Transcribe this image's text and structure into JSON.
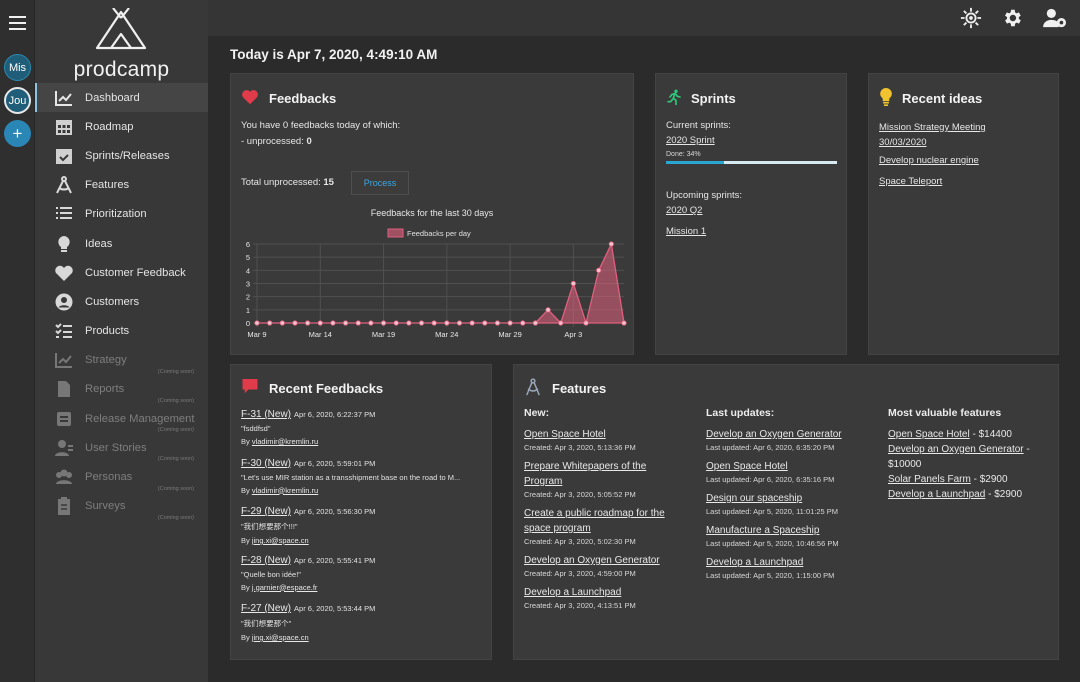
{
  "rail": {
    "workspaces": [
      {
        "label": "Mis"
      },
      {
        "label": "Jou"
      }
    ],
    "add_label": "+"
  },
  "brand": {
    "name": "prodcamp"
  },
  "nav": {
    "coming_soon": "(Coming soon)",
    "items": [
      {
        "label": "Dashboard",
        "icon": "dashboard-chart-icon"
      },
      {
        "label": "Roadmap",
        "icon": "calendar-icon"
      },
      {
        "label": "Sprints/Releases",
        "icon": "calendar-check-icon"
      },
      {
        "label": "Features",
        "icon": "compass-icon"
      },
      {
        "label": "Prioritization",
        "icon": "list-icon"
      },
      {
        "label": "Ideas",
        "icon": "lightbulb-icon"
      },
      {
        "label": "Customer Feedback",
        "icon": "heart-icon"
      },
      {
        "label": "Customers",
        "icon": "user-circle-icon"
      },
      {
        "label": "Products",
        "icon": "checklist-icon"
      },
      {
        "label": "Strategy",
        "icon": "strategy-chart-icon"
      },
      {
        "label": "Reports",
        "icon": "document-icon"
      },
      {
        "label": "Release Management",
        "icon": "release-icon"
      },
      {
        "label": "User Stories",
        "icon": "user-story-icon"
      },
      {
        "label": "Personas",
        "icon": "personas-icon"
      },
      {
        "label": "Surveys",
        "icon": "clipboard-icon"
      }
    ]
  },
  "today": "Today is Apr 7, 2020, 4:49:10 AM",
  "feedbacks": {
    "title": "Feedbacks",
    "line1": "You have 0 feedbacks today of which:",
    "unprocessed_label": "- unprocessed: ",
    "unprocessed_value": "0",
    "total_label": "Total unprocessed: ",
    "total_value": "15",
    "process_label": "Process"
  },
  "chart_data": {
    "type": "area",
    "title": "Feedbacks for the last 30 days",
    "series": [
      {
        "name": "Feedbacks per day",
        "values": [
          0,
          0,
          0,
          0,
          0,
          0,
          0,
          0,
          0,
          0,
          0,
          0,
          0,
          0,
          0,
          0,
          0,
          0,
          0,
          0,
          0,
          0,
          0,
          1,
          0,
          3,
          0,
          4,
          6,
          0
        ]
      }
    ],
    "x": [
      "Mar 9",
      "Mar 10",
      "Mar 11",
      "Mar 12",
      "Mar 13",
      "Mar 14",
      "Mar 15",
      "Mar 16",
      "Mar 17",
      "Mar 18",
      "Mar 19",
      "Mar 20",
      "Mar 21",
      "Mar 22",
      "Mar 23",
      "Mar 24",
      "Mar 25",
      "Mar 26",
      "Mar 27",
      "Mar 28",
      "Mar 29",
      "Mar 30",
      "Mar 31",
      "Apr 1",
      "Apr 2",
      "Apr 3",
      "Apr 4",
      "Apr 5",
      "Apr 6",
      "Apr 7"
    ],
    "xticks": [
      "Mar 9",
      "Mar 14",
      "Mar 19",
      "Mar 24",
      "Mar 29",
      "Apr 3"
    ],
    "yticks": [
      0,
      1,
      2,
      3,
      4,
      5,
      6
    ],
    "ylim": [
      0,
      6
    ],
    "grid": true,
    "legend": "top-center",
    "color": "#e0607e"
  },
  "sprints": {
    "title": "Sprints",
    "current_label": "Current sprints:",
    "current": {
      "name": "2020 Sprint",
      "done_label": "Done: 34%",
      "progress": 0.34
    },
    "upcoming_label": "Upcoming sprints:",
    "upcoming": [
      "2020 Q2",
      "Mission 1"
    ]
  },
  "recent_ideas": {
    "title": "Recent ideas",
    "items": [
      {
        "line1": "Mission Strategy Meeting",
        "line2": "30/03/2020"
      },
      {
        "line1": "Develop nuclear engine"
      },
      {
        "line1": "Space Teleport"
      }
    ]
  },
  "recent_feedbacks": {
    "title": "Recent Feedbacks",
    "items": [
      {
        "id": "F-31 (New)",
        "date": "Apr 6, 2020, 6:22:37 PM",
        "msg": "\"fsddfsd\"",
        "by_label": "By ",
        "by": "vladimir@kremlin.ru"
      },
      {
        "id": "F-30 (New)",
        "date": "Apr 6, 2020, 5:59:01 PM",
        "msg": "\"Let's use MIR station as a transshipment base on the road to M...",
        "by_label": "By ",
        "by": "vladimir@kremlin.ru"
      },
      {
        "id": "F-29 (New)",
        "date": "Apr 6, 2020, 5:56:30 PM",
        "msg": "\"我们想要那个!!!\"",
        "by_label": "By ",
        "by": "jing.xi@space.cn"
      },
      {
        "id": "F-28 (New)",
        "date": "Apr 6, 2020, 5:55:41 PM",
        "msg": "\"Quelle bon idée!\"",
        "by_label": "By ",
        "by": "j.garnier@espace.fr"
      },
      {
        "id": "F-27 (New)",
        "date": "Apr 6, 2020, 5:53:44 PM",
        "msg": "\"我们想要那个\"",
        "by_label": "By ",
        "by": "jing.xi@space.cn"
      }
    ]
  },
  "features": {
    "title": "Features",
    "new_label": "New:",
    "new": [
      {
        "title": "Open Space Hotel",
        "meta": "Created: Apr 3, 2020, 5:13:36 PM"
      },
      {
        "title": "Prepare Whitepapers of the Program",
        "meta": "Created: Apr 3, 2020, 5:05:52 PM"
      },
      {
        "title": "Create a public roadmap for the space program",
        "meta": "Created: Apr 3, 2020, 5:02:30 PM"
      },
      {
        "title": "Develop an Oxygen Generator",
        "meta": "Created: Apr 3, 2020, 4:59:00 PM"
      },
      {
        "title": "Develop a Launchpad",
        "meta": "Created: Apr 3, 2020, 4:13:51 PM"
      }
    ],
    "updates_label": "Last updates:",
    "updates": [
      {
        "title": "Develop an Oxygen Generator",
        "meta": "Last updated: Apr 6, 2020, 6:35:20 PM"
      },
      {
        "title": "Open Space Hotel",
        "meta": "Last updated: Apr 6, 2020, 6:35:16 PM"
      },
      {
        "title": "Design our spaceship",
        "meta": "Last updated: Apr 5, 2020, 11:01:25 PM"
      },
      {
        "title": "Manufacture a Spaceship",
        "meta": "Last updated: Apr 5, 2020, 10:46:56 PM"
      },
      {
        "title": "Develop a Launchpad",
        "meta": "Last updated: Apr 5, 2020, 1:15:00 PM"
      }
    ],
    "valuable_label": "Most valuable features",
    "valuable": [
      {
        "title": "Open Space Hotel",
        "value": " - $14400"
      },
      {
        "title": "Develop an Oxygen Generator",
        "value": " - $10000"
      },
      {
        "title": "Solar Panels Farm",
        "value": " - $2900"
      },
      {
        "title": "Develop a Launchpad",
        "value": " - $2900"
      }
    ]
  },
  "colors": {
    "heart": "#e03b4a",
    "sprint": "#2ec87a",
    "idea": "#f2c230",
    "accent": "#3ea6e0",
    "chart": "#e0607e"
  }
}
